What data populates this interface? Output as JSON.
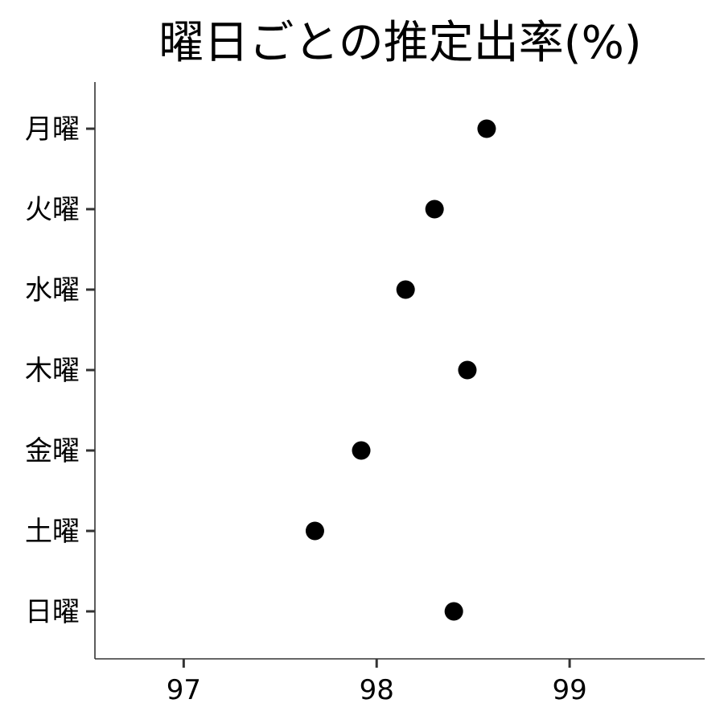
{
  "chart_data": {
    "type": "scatter",
    "title": "曜日ごとの推定出率(%)",
    "xlabel": "",
    "ylabel": "",
    "categories": [
      "月曜",
      "火曜",
      "水曜",
      "木曜",
      "金曜",
      "土曜",
      "日曜"
    ],
    "values": [
      98.57,
      98.3,
      98.15,
      98.47,
      97.92,
      97.68,
      98.4
    ],
    "xlim": [
      96.54,
      99.7
    ],
    "xticks": [
      97,
      98,
      99
    ],
    "xtick_labels": [
      "97",
      "98",
      "99"
    ],
    "grid": false,
    "legend": "none",
    "point_color": "#000000",
    "axis_color": "#333333"
  }
}
